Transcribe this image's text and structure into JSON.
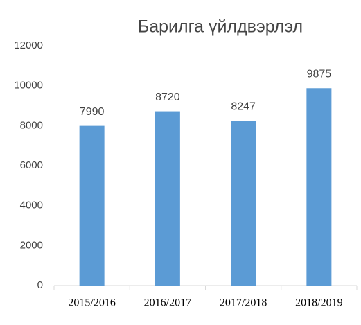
{
  "chart_data": {
    "type": "bar",
    "title": "Барилга үйлдвэрлэл",
    "categories": [
      "2015/2016",
      "2016/2017",
      "2017/2018",
      "2018/2019"
    ],
    "values": [
      7990,
      8720,
      8247,
      9875
    ],
    "color": "#5b9bd5",
    "ylim": [
      0,
      12000
    ],
    "yticks": [
      0,
      2000,
      4000,
      6000,
      8000,
      10000,
      12000
    ],
    "grid": false
  }
}
